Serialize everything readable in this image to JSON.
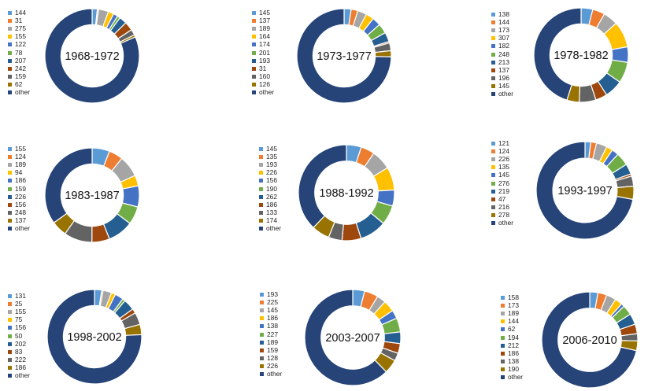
{
  "colors": {
    "palette": [
      "#5B9BD5",
      "#ED7D31",
      "#A5A5A5",
      "#FFC000",
      "#4472C4",
      "#70AD47",
      "#255E91",
      "#9E480E",
      "#636363",
      "#997300"
    ],
    "other": "#264478"
  },
  "chart_data": [
    {
      "type": "pie",
      "subtype": "donut",
      "title": "1968-1972",
      "labels": [
        "144",
        "31",
        "275",
        "155",
        "122",
        "78",
        "207",
        "242",
        "159",
        "62",
        "other"
      ],
      "values": [
        144,
        31,
        275,
        155,
        122,
        78,
        207,
        242,
        159,
        62,
        6525
      ],
      "legend": "left"
    },
    {
      "type": "pie",
      "subtype": "donut",
      "title": "1973-1977",
      "labels": [
        "145",
        "137",
        "189",
        "164",
        "174",
        "201",
        "193",
        "31",
        "160",
        "126",
        "other"
      ],
      "values": [
        145,
        137,
        189,
        164,
        174,
        201,
        193,
        31,
        160,
        126,
        4480
      ],
      "legend": "left"
    },
    {
      "type": "pie",
      "subtype": "donut",
      "title": "1978-1982",
      "labels": [
        "138",
        "144",
        "173",
        "307",
        "182",
        "248",
        "213",
        "137",
        "196",
        "145",
        "other"
      ],
      "values": [
        138,
        144,
        173,
        307,
        182,
        248,
        213,
        137,
        196,
        145,
        1550
      ],
      "legend": "left"
    },
    {
      "type": "pie",
      "subtype": "donut",
      "title": "1983-1987",
      "labels": [
        "155",
        "124",
        "189",
        "94",
        "186",
        "159",
        "226",
        "156",
        "248",
        "137",
        "other"
      ],
      "values": [
        155,
        124,
        189,
        94,
        186,
        159,
        226,
        156,
        248,
        137,
        900
      ],
      "legend": "left"
    },
    {
      "type": "pie",
      "subtype": "donut",
      "title": "1988-1992",
      "labels": [
        "145",
        "135",
        "193",
        "226",
        "156",
        "190",
        "262",
        "186",
        "133",
        "174",
        "other"
      ],
      "values": [
        145,
        135,
        193,
        226,
        156,
        190,
        262,
        186,
        133,
        174,
        1100
      ],
      "legend": "left"
    },
    {
      "type": "pie",
      "subtype": "donut",
      "title": "1993-1997",
      "labels": [
        "121",
        "124",
        "226",
        "135",
        "145",
        "276",
        "219",
        "47",
        "216",
        "278",
        "other"
      ],
      "values": [
        121,
        124,
        226,
        135,
        145,
        276,
        219,
        47,
        216,
        278,
        4600
      ],
      "legend": "left"
    },
    {
      "type": "pie",
      "subtype": "donut",
      "title": "1998-2002",
      "labels": [
        "131",
        "25",
        "155",
        "75",
        "156",
        "50",
        "202",
        "83",
        "222",
        "186",
        "other"
      ],
      "values": [
        131,
        25,
        155,
        75,
        156,
        50,
        202,
        83,
        222,
        186,
        4000
      ],
      "legend": "left"
    },
    {
      "type": "pie",
      "subtype": "donut",
      "title": "2003-2007",
      "labels": [
        "193",
        "225",
        "145",
        "186",
        "138",
        "227",
        "189",
        "159",
        "128",
        "226",
        "other"
      ],
      "values": [
        193,
        225,
        145,
        186,
        138,
        227,
        189,
        159,
        128,
        226,
        3000
      ],
      "legend": "left"
    },
    {
      "type": "pie",
      "subtype": "donut",
      "title": "2006-2010",
      "labels": [
        "158",
        "173",
        "189",
        "144",
        "62",
        "194",
        "212",
        "186",
        "138",
        "190",
        "other"
      ],
      "values": [
        158,
        173,
        189,
        144,
        62,
        194,
        212,
        186,
        138,
        190,
        4100
      ],
      "legend": "left"
    }
  ]
}
